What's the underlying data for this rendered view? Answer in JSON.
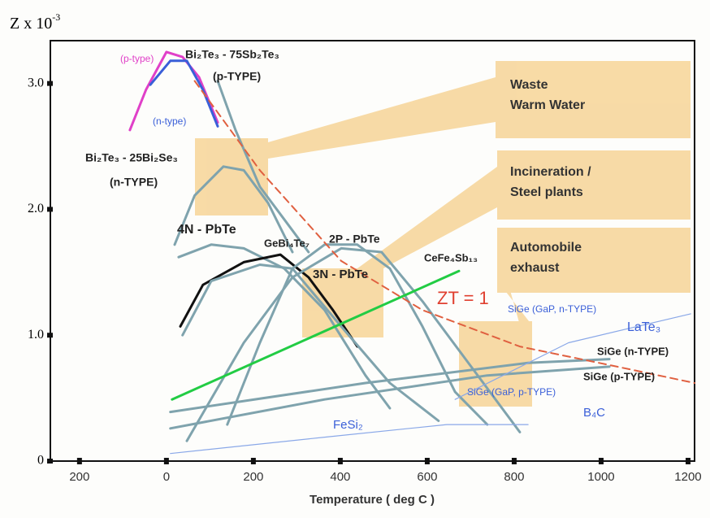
{
  "chart_data": {
    "type": "line",
    "ylabel": "Z x 10",
    "ylabel_exponent": "-3",
    "xlabel": "Temperature ( deg C )",
    "xlim": [
      -267,
      1215
    ],
    "ylim": [
      0,
      3.34
    ],
    "xticks": [
      {
        "value": -200,
        "label": "200"
      },
      0,
      200,
      400,
      600,
      800,
      1000,
      1200
    ],
    "yticks": [
      0,
      {
        "value": 1,
        "label": "1.0"
      },
      {
        "value": 2,
        "label": "2.0"
      },
      {
        "value": 3,
        "label": "3.0"
      }
    ],
    "series": [
      {
        "color": "#e040c8",
        "x": [
          -84,
          -47,
          0,
          37,
          75,
          118
        ],
        "values": [
          2.63,
          2.95,
          3.25,
          3.21,
          3.05,
          2.69
        ]
      },
      {
        "color": "#3a5fd8",
        "x": [
          -37,
          9,
          47,
          84,
          118
        ],
        "values": [
          2.99,
          3.18,
          3.18,
          2.95,
          2.66
        ]
      },
      {
        "color": "#7fa3ad",
        "x": [
          118,
          159,
          215,
          271,
          327
        ],
        "values": [
          3.02,
          2.63,
          2.18,
          1.92,
          1.66
        ]
      },
      {
        "color": "#7fa3ad",
        "x": [
          19,
          65,
          131,
          178,
          234,
          290
        ],
        "values": [
          1.72,
          2.11,
          2.34,
          2.31,
          2.05,
          1.66
        ]
      },
      {
        "color": "#7fa3ad",
        "x": [
          28,
          103,
          178,
          271,
          364,
          458,
          514
        ],
        "values": [
          1.62,
          1.72,
          1.69,
          1.53,
          1.2,
          0.68,
          0.42
        ]
      },
      {
        "color": "#111111",
        "x": [
          32,
          84,
          178,
          262,
          327,
          383,
          439
        ],
        "values": [
          1.07,
          1.4,
          1.58,
          1.64,
          1.46,
          1.2,
          0.91
        ]
      },
      {
        "color": "#7fa3ad",
        "x": [
          37,
          103,
          215,
          290,
          402,
          514,
          626
        ],
        "values": [
          1.0,
          1.43,
          1.56,
          1.53,
          1.07,
          0.62,
          0.32
        ]
      },
      {
        "color": "#7fa3ad",
        "x": [
          47,
          178,
          290,
          402,
          495,
          589,
          701,
          813
        ],
        "values": [
          0.16,
          0.94,
          1.46,
          1.69,
          1.66,
          1.27,
          0.75,
          0.23
        ]
      },
      {
        "color": "#7fa3ad",
        "x": [
          140,
          215,
          290,
          364,
          439,
          514,
          589,
          664,
          738
        ],
        "values": [
          0.29,
          0.94,
          1.53,
          1.72,
          1.72,
          1.53,
          1.07,
          0.55,
          0.29
        ]
      },
      {
        "color": "#22cc44",
        "x": [
          13,
          673
        ],
        "values": [
          0.49,
          1.51
        ]
      },
      {
        "color": "#7fa3ad",
        "x": [
          9,
          364,
          738,
          1019
        ],
        "values": [
          0.26,
          0.49,
          0.68,
          0.75
        ]
      },
      {
        "color": "#7fa3ad",
        "x": [
          9,
          458,
          832,
          1019
        ],
        "values": [
          0.39,
          0.62,
          0.78,
          0.81
        ]
      },
      {
        "color": "#8aa8e8",
        "x": [
          664,
          925,
          1206
        ],
        "values": [
          0.49,
          0.94,
          1.17
        ]
      },
      {
        "color": "#8aa8e8",
        "x": [
          9,
          364,
          645,
          832
        ],
        "values": [
          0.06,
          0.19,
          0.29,
          0.29
        ]
      },
      {
        "color": "#e06040",
        "dashed": true,
        "x": [
          65,
          215,
          402,
          589,
          813,
          1037,
          1215
        ],
        "values": [
          3.02,
          2.31,
          1.59,
          1.2,
          0.91,
          0.75,
          0.62
        ]
      }
    ],
    "annotations": [
      "(p-type)",
      "Bi₂Te₃ - 75Sb₂Te₃",
      "(p-TYPE)",
      "(n-type)",
      "Bi₂Te₃ - 25Bi₂Se₃",
      "(n-TYPE)",
      "4N - PbTe",
      "GeBi₄Te₇",
      "2P - PbTe",
      "3N - PbTe",
      "CeFe₄Sb₁₃",
      "ZT = 1",
      "SiGe (GaP, n-TYPE)",
      "LaTe₃",
      "SiGe (n-TYPE)",
      "SiGe (p-TYPE)",
      "SiGe (GaP, p-TYPE)",
      "B₄C",
      "FeSi₂"
    ],
    "boxes": [
      [
        "Waste",
        "Warm Water"
      ],
      [
        "Incineration /",
        "Steel plants"
      ],
      [
        "Automobile",
        "exhaust"
      ]
    ]
  }
}
